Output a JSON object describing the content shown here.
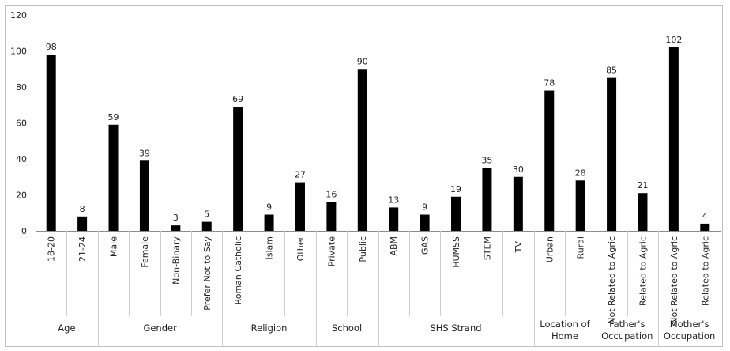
{
  "chart_data": {
    "type": "bar",
    "title": "",
    "xlabel": "",
    "ylabel": "",
    "ylim": [
      0,
      120
    ],
    "yticks": [
      0,
      20,
      40,
      60,
      80,
      100,
      120
    ],
    "grid": false,
    "legend": "none",
    "bar_color": "#000000",
    "groups": [
      {
        "label": "Age",
        "categories": [
          {
            "label": "18-20",
            "value": 98
          },
          {
            "label": "21-24",
            "value": 8
          }
        ]
      },
      {
        "label": "Gender",
        "categories": [
          {
            "label": "Male",
            "value": 59
          },
          {
            "label": "Female",
            "value": 39
          },
          {
            "label": "Non-Binary",
            "value": 3
          },
          {
            "label": "Prefer Not to Say",
            "value": 5
          }
        ]
      },
      {
        "label": "Religion",
        "categories": [
          {
            "label": "Roman Catholic",
            "value": 69
          },
          {
            "label": "Islam",
            "value": 9
          },
          {
            "label": "Other",
            "value": 27
          }
        ]
      },
      {
        "label": "School",
        "categories": [
          {
            "label": "Private",
            "value": 16
          },
          {
            "label": "Public",
            "value": 90
          }
        ]
      },
      {
        "label": "SHS Strand",
        "categories": [
          {
            "label": "ABM",
            "value": 13
          },
          {
            "label": "GAS",
            "value": 9
          },
          {
            "label": "HUMSS",
            "value": 19
          },
          {
            "label": "STEM",
            "value": 35
          },
          {
            "label": "TVL",
            "value": 30
          }
        ]
      },
      {
        "label": "Location of Home",
        "categories": [
          {
            "label": "Urban",
            "value": 78
          },
          {
            "label": "Rural",
            "value": 28
          }
        ]
      },
      {
        "label": "Father's Occupation",
        "categories": [
          {
            "label": "Not Related to Agric",
            "value": 85
          },
          {
            "label": "Related to Agric",
            "value": 21
          }
        ]
      },
      {
        "label": "Mother's Occupation",
        "categories": [
          {
            "label": "Not Related to Agric",
            "value": 102
          },
          {
            "label": "Related to Agric",
            "value": 4
          }
        ]
      }
    ]
  }
}
